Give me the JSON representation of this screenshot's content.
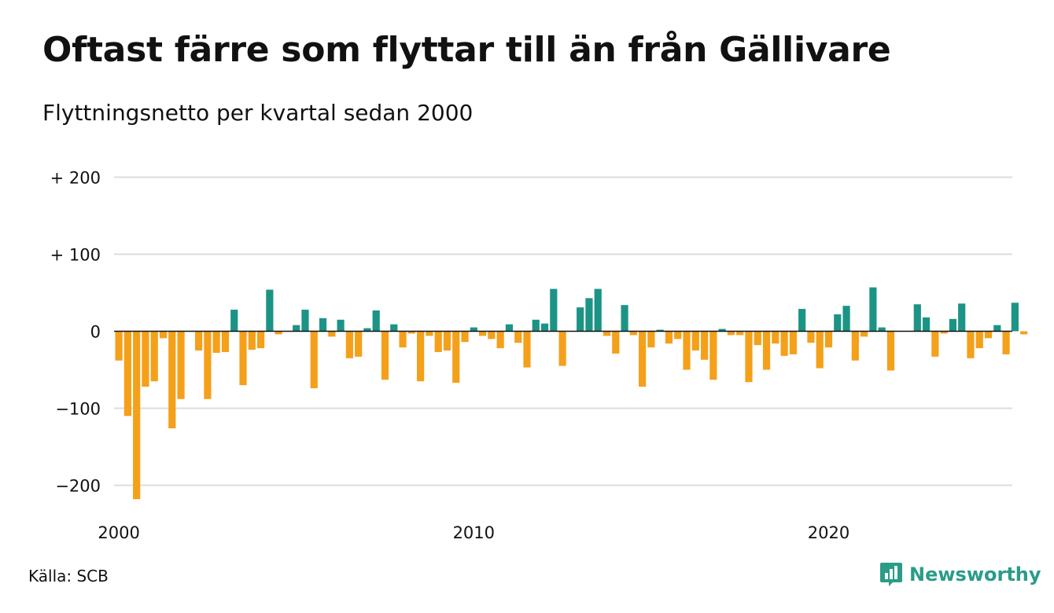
{
  "title": "Oftast färre som flyttar till än från Gällivare",
  "subtitle": "Flyttningsnetto per kvartal sedan 2000",
  "source": "Källa: SCB",
  "brand": "Newsworthy",
  "colors": {
    "positive": "#1c9485",
    "negative": "#f5a01a",
    "grid": "#dddddd",
    "zero": "#111111"
  },
  "chart_data": {
    "type": "bar",
    "title": "Oftast färre som flyttar till än från Gällivare",
    "subtitle": "Flyttningsnetto per kvartal sedan 2000",
    "xlabel": "",
    "ylabel": "",
    "ylim": [
      -220,
      210
    ],
    "yticks": [
      {
        "value": 200,
        "label": "+ 200"
      },
      {
        "value": 100,
        "label": "+ 100"
      },
      {
        "value": 0,
        "label": "0"
      },
      {
        "value": -100,
        "label": "−100"
      },
      {
        "value": -200,
        "label": "−200"
      }
    ],
    "xticks": [
      "2000",
      "2010",
      "2020"
    ],
    "start_year": 2000,
    "periods_per_year": 4,
    "grid": true,
    "values": [
      -38,
      -110,
      -218,
      -72,
      -65,
      -9,
      -126,
      -88,
      0,
      -25,
      -88,
      -28,
      -27,
      28,
      -70,
      -24,
      -22,
      54,
      -4,
      0,
      8,
      28,
      -74,
      17,
      -7,
      15,
      -35,
      -33,
      4,
      27,
      -63,
      9,
      -21,
      -3,
      -65,
      -6,
      -27,
      -25,
      -67,
      -14,
      5,
      -6,
      -10,
      -22,
      9,
      -15,
      -47,
      15,
      10,
      55,
      -45,
      0,
      31,
      43,
      55,
      -6,
      -29,
      34,
      -5,
      -72,
      -21,
      2,
      -16,
      -10,
      -50,
      -25,
      -37,
      -63,
      3,
      -5,
      -5,
      -66,
      -18,
      -50,
      -16,
      -32,
      -30,
      29,
      -15,
      -48,
      -21,
      22,
      33,
      -38,
      -7,
      57,
      5,
      -51,
      0,
      0,
      35,
      18,
      -33,
      -3,
      16,
      36,
      -35,
      -22,
      -9,
      8,
      -30,
      37,
      -4
    ]
  }
}
